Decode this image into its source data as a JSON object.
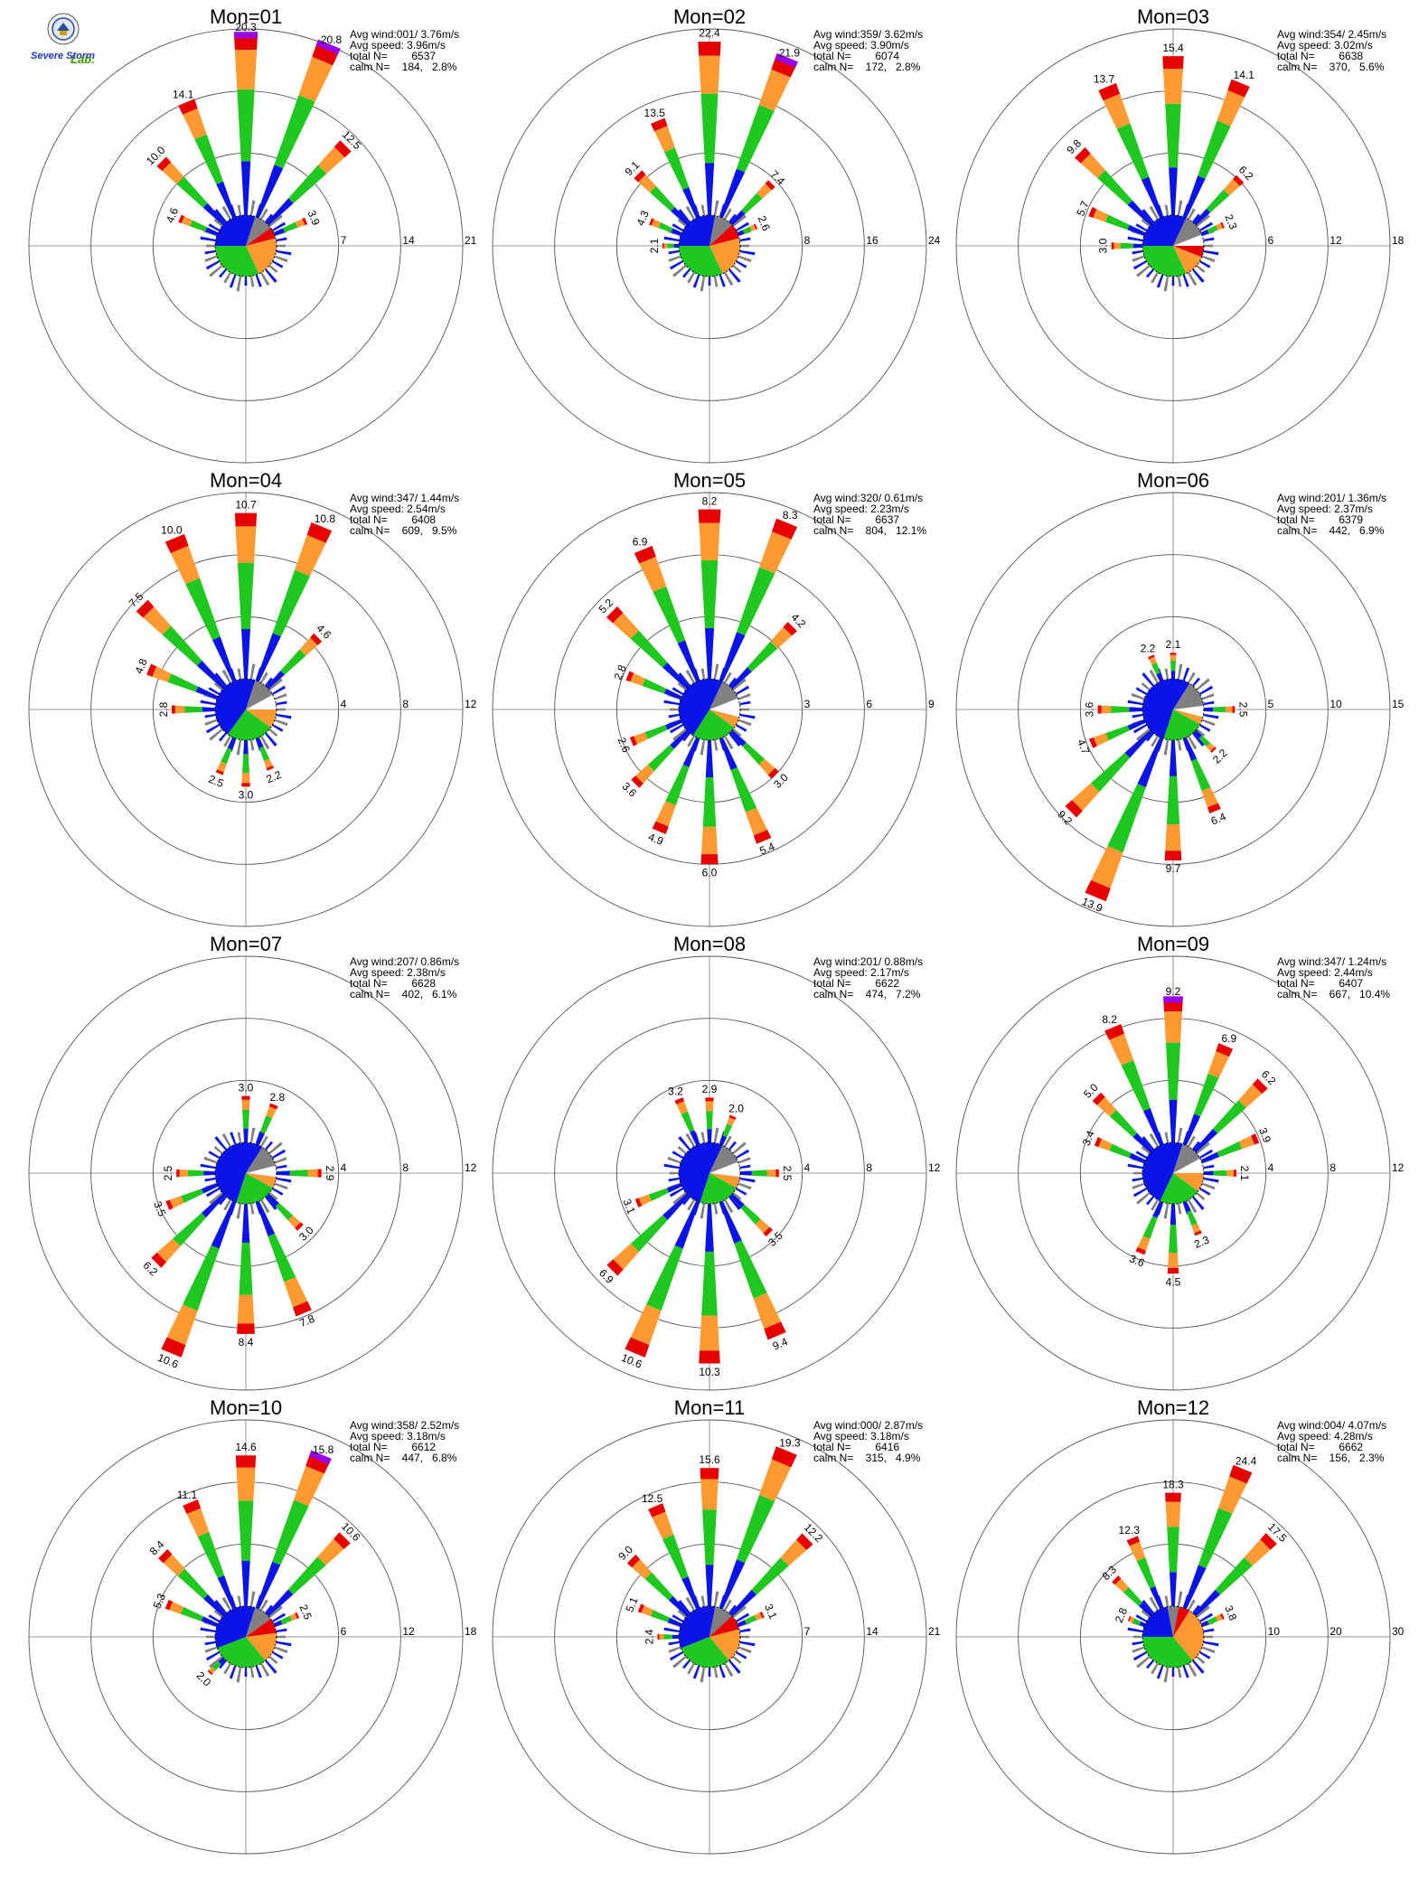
{
  "logo": {
    "lab_name_part1": "Severe Storm",
    "lab_name_part2": "Lab."
  },
  "stat_labels": {
    "avg_wind": "Avg wind:",
    "avg_speed": "Avg speed:",
    "total_n": "total N=",
    "calm_n": "calm N="
  },
  "colors": {
    "blue": "#0a14e6",
    "green": "#1ec81e",
    "orange": "#ff9a32",
    "red": "#e60000",
    "purple": "#9a00e6",
    "gray": "#808080",
    "black": "#000000"
  },
  "chart_data": [
    {
      "type": "wind-rose",
      "title": "Mon=01",
      "rings": [
        7,
        14,
        21
      ],
      "stats": {
        "avg_wind": "001/ 3.76m/s",
        "avg_speed": "3.96m/s",
        "total_n": "6537",
        "calm_n": "184,",
        "calm_pct": "2.8%"
      },
      "spokes": [
        {
          "dir": 0,
          "value": 20.3,
          "label": "20.3",
          "purple": true
        },
        {
          "dir": 22.5,
          "value": 20.8,
          "label": "20.8",
          "purple": true
        },
        {
          "dir": -22.5,
          "value": 14.1,
          "label": "14.1"
        },
        {
          "dir": 45,
          "value": 12.5,
          "label": "12.5"
        },
        {
          "dir": -45,
          "value": 10.0,
          "label": "10.0"
        },
        {
          "dir": -67.5,
          "value": 4.6,
          "label": "4.6"
        },
        {
          "dir": 67.5,
          "value": 3.9,
          "label": "3.9"
        }
      ],
      "pie": [
        {
          "color": "blue",
          "pct": 30
        },
        {
          "color": "gray",
          "pct": 10
        },
        {
          "color": "red",
          "pct": 6
        },
        {
          "color": "orange",
          "pct": 22
        },
        {
          "color": "green",
          "pct": 32
        }
      ]
    },
    {
      "type": "wind-rose",
      "title": "Mon=02",
      "rings": [
        8,
        16,
        24
      ],
      "stats": {
        "avg_wind": "359/ 3.62m/s",
        "avg_speed": "3.90m/s",
        "total_n": "6074",
        "calm_n": "172,",
        "calm_pct": "2.8%"
      },
      "spokes": [
        {
          "dir": 0,
          "value": 22.4,
          "label": "22.4"
        },
        {
          "dir": 22.5,
          "value": 21.9,
          "label": "21.9",
          "purple": true
        },
        {
          "dir": -22.5,
          "value": 13.5,
          "label": "13.5"
        },
        {
          "dir": 45,
          "value": 7.4,
          "label": "7.4"
        },
        {
          "dir": -45,
          "value": 9.1,
          "label": "9.1"
        },
        {
          "dir": -67.5,
          "value": 4.3,
          "label": "4.3"
        },
        {
          "dir": 67.5,
          "value": 2.6,
          "label": "2.6"
        },
        {
          "dir": -90,
          "value": 2.1,
          "label": "2.1"
        }
      ],
      "pie": [
        {
          "color": "blue",
          "pct": 28
        },
        {
          "color": "gray",
          "pct": 10
        },
        {
          "color": "red",
          "pct": 8
        },
        {
          "color": "orange",
          "pct": 22
        },
        {
          "color": "green",
          "pct": 32
        }
      ]
    },
    {
      "type": "wind-rose",
      "title": "Mon=03",
      "rings": [
        6,
        12,
        18
      ],
      "stats": {
        "avg_wind": "354/ 2.45m/s",
        "avg_speed": "3.02m/s",
        "total_n": "6638",
        "calm_n": "370,",
        "calm_pct": "5.6%"
      },
      "spokes": [
        {
          "dir": 0,
          "value": 15.4,
          "label": "15.4"
        },
        {
          "dir": 22.5,
          "value": 14.1,
          "label": "14.1"
        },
        {
          "dir": -22.5,
          "value": 13.7,
          "label": "13.7"
        },
        {
          "dir": -45,
          "value": 9.8,
          "label": "9.8"
        },
        {
          "dir": 45,
          "value": 6.2,
          "label": "6.2"
        },
        {
          "dir": -67.5,
          "value": 5.7,
          "label": "5.7"
        },
        {
          "dir": 67.5,
          "value": 2.3,
          "label": "2.3"
        },
        {
          "dir": -90,
          "value": 3.0,
          "label": "3.0"
        }
      ],
      "pie": [
        {
          "color": "blue",
          "pct": 32
        },
        {
          "color": "gray",
          "pct": 12
        },
        {
          "color": "white",
          "pct": 6
        },
        {
          "color": "red",
          "pct": 6
        },
        {
          "color": "orange",
          "pct": 12
        },
        {
          "color": "green",
          "pct": 32
        }
      ]
    },
    {
      "type": "wind-rose",
      "title": "Mon=04",
      "rings": [
        4,
        8,
        12
      ],
      "stats": {
        "avg_wind": "347/ 1.44m/s",
        "avg_speed": "2.54m/s",
        "total_n": "6408",
        "calm_n": "609,",
        "calm_pct": "9.5%"
      },
      "spokes": [
        {
          "dir": 0,
          "value": 10.7,
          "label": "10.7"
        },
        {
          "dir": 22.5,
          "value": 10.8,
          "label": "10.8"
        },
        {
          "dir": -22.5,
          "value": 10.0,
          "label": "10.0"
        },
        {
          "dir": -45,
          "value": 7.5,
          "label": "7.5"
        },
        {
          "dir": 45,
          "value": 4.6,
          "label": "4.6"
        },
        {
          "dir": -67.5,
          "value": 4.8,
          "label": "4.8"
        },
        {
          "dir": -90,
          "value": 2.8,
          "label": "2.8"
        },
        {
          "dir": 180,
          "value": 3.0,
          "label": "3.0"
        },
        {
          "dir": 157.5,
          "value": 2.2,
          "label": "2.2"
        },
        {
          "dir": 202.5,
          "value": 2.5,
          "label": "2.5"
        }
      ],
      "pie": [
        {
          "color": "blue",
          "pct": 30
        },
        {
          "color": "gray",
          "pct": 12
        },
        {
          "color": "white",
          "pct": 8
        },
        {
          "color": "orange",
          "pct": 10
        },
        {
          "color": "green",
          "pct": 25
        },
        {
          "color": "blue",
          "pct": 15
        }
      ]
    },
    {
      "type": "wind-rose",
      "title": "Mon=05",
      "rings": [
        3,
        6,
        9
      ],
      "stats": {
        "avg_wind": "320/ 0.61m/s",
        "avg_speed": "2.23m/s",
        "total_n": "6637",
        "calm_n": "804,",
        "calm_pct": "12.1%"
      },
      "spokes": [
        {
          "dir": 0,
          "value": 8.2,
          "label": "8.2"
        },
        {
          "dir": 22.5,
          "value": 8.3,
          "label": "8.3"
        },
        {
          "dir": -22.5,
          "value": 6.9,
          "label": "6.9"
        },
        {
          "dir": -45,
          "value": 5.2,
          "label": "5.2"
        },
        {
          "dir": 45,
          "value": 4.2,
          "label": "4.2"
        },
        {
          "dir": -67.5,
          "value": 2.8,
          "label": "2.8"
        },
        {
          "dir": 180,
          "value": 6.0,
          "label": "6.0"
        },
        {
          "dir": 157.5,
          "value": 5.4,
          "label": "5.4"
        },
        {
          "dir": 202.5,
          "value": 4.9,
          "label": "4.9"
        },
        {
          "dir": 225,
          "value": 3.6,
          "label": "3.6"
        },
        {
          "dir": 135,
          "value": 3.0,
          "label": "3.0"
        },
        {
          "dir": 247.5,
          "value": 2.6,
          "label": "2.6"
        }
      ],
      "pie": [
        {
          "color": "blue",
          "pct": 32
        },
        {
          "color": "gray",
          "pct": 12
        },
        {
          "color": "white",
          "pct": 10
        },
        {
          "color": "orange",
          "pct": 6
        },
        {
          "color": "green",
          "pct": 24
        },
        {
          "color": "blue",
          "pct": 16
        }
      ]
    },
    {
      "type": "wind-rose",
      "title": "Mon=06",
      "rings": [
        5,
        10,
        15
      ],
      "stats": {
        "avg_wind": "201/ 1.36m/s",
        "avg_speed": "2.37m/s",
        "total_n": "6379",
        "calm_n": "442,",
        "calm_pct": "6.9%"
      },
      "spokes": [
        {
          "dir": 202.5,
          "value": 13.9,
          "label": "13.9"
        },
        {
          "dir": 180,
          "value": 9.7,
          "label": "9.7"
        },
        {
          "dir": 225,
          "value": 9.2,
          "label": "9.2"
        },
        {
          "dir": 157.5,
          "value": 6.4,
          "label": "6.4"
        },
        {
          "dir": 247.5,
          "value": 4.7,
          "label": "4.7"
        },
        {
          "dir": 270,
          "value": 3.6,
          "label": "3.6"
        },
        {
          "dir": 135,
          "value": 2.2,
          "label": "2.2"
        },
        {
          "dir": 90,
          "value": 2.5,
          "label": "2.5"
        },
        {
          "dir": 0,
          "value": 2.1,
          "label": "2.1"
        },
        {
          "dir": -22.5,
          "value": 2.2,
          "label": "2.2"
        }
      ],
      "pie": [
        {
          "color": "blue",
          "pct": 34
        },
        {
          "color": "gray",
          "pct": 14
        },
        {
          "color": "white",
          "pct": 6
        },
        {
          "color": "orange",
          "pct": 4
        },
        {
          "color": "green",
          "pct": 22
        },
        {
          "color": "blue",
          "pct": 20
        }
      ]
    },
    {
      "type": "wind-rose",
      "title": "Mon=07",
      "rings": [
        4,
        8,
        12
      ],
      "stats": {
        "avg_wind": "207/ 0.86m/s",
        "avg_speed": "2.38m/s",
        "total_n": "6628",
        "calm_n": "402,",
        "calm_pct": "6.1%"
      },
      "spokes": [
        {
          "dir": 202.5,
          "value": 10.6,
          "label": "10.6"
        },
        {
          "dir": 180,
          "value": 8.4,
          "label": "8.4"
        },
        {
          "dir": 157.5,
          "value": 7.8,
          "label": "7.8"
        },
        {
          "dir": 225,
          "value": 6.2,
          "label": "6.2"
        },
        {
          "dir": 247.5,
          "value": 3.5,
          "label": "3.5"
        },
        {
          "dir": 135,
          "value": 3.0,
          "label": "3.0"
        },
        {
          "dir": 270,
          "value": 2.5,
          "label": "2.5"
        },
        {
          "dir": 0,
          "value": 3.0,
          "label": "3.0"
        },
        {
          "dir": 22.5,
          "value": 2.8,
          "label": "2.8"
        },
        {
          "dir": 90,
          "value": 2.9,
          "label": "2.9"
        }
      ],
      "pie": [
        {
          "color": "blue",
          "pct": 34
        },
        {
          "color": "gray",
          "pct": 12
        },
        {
          "color": "white",
          "pct": 6
        },
        {
          "color": "orange",
          "pct": 6
        },
        {
          "color": "green",
          "pct": 22
        },
        {
          "color": "blue",
          "pct": 20
        }
      ]
    },
    {
      "type": "wind-rose",
      "title": "Mon=08",
      "rings": [
        4,
        8,
        12
      ],
      "stats": {
        "avg_wind": "201/ 0.88m/s",
        "avg_speed": "2.17m/s",
        "total_n": "6622",
        "calm_n": "474,",
        "calm_pct": "7.2%"
      },
      "spokes": [
        {
          "dir": 202.5,
          "value": 10.6,
          "label": "10.6"
        },
        {
          "dir": 180,
          "value": 10.3,
          "label": "10.3"
        },
        {
          "dir": 157.5,
          "value": 9.4,
          "label": "9.4"
        },
        {
          "dir": 225,
          "value": 6.9,
          "label": "6.9"
        },
        {
          "dir": 135,
          "value": 3.5,
          "label": "3.5"
        },
        {
          "dir": 247.5,
          "value": 3.1,
          "label": "3.1"
        },
        {
          "dir": 0,
          "value": 2.9,
          "label": "2.9"
        },
        {
          "dir": 22.5,
          "value": 2.0,
          "label": "2.0"
        },
        {
          "dir": -22.5,
          "value": 3.2,
          "label": "3.2"
        },
        {
          "dir": 90,
          "value": 2.5,
          "label": "2.5"
        }
      ],
      "pie": [
        {
          "color": "blue",
          "pct": 32
        },
        {
          "color": "gray",
          "pct": 12
        },
        {
          "color": "white",
          "pct": 8
        },
        {
          "color": "orange",
          "pct": 6
        },
        {
          "color": "green",
          "pct": 22
        },
        {
          "color": "blue",
          "pct": 20
        }
      ]
    },
    {
      "type": "wind-rose",
      "title": "Mon=09",
      "rings": [
        4,
        8,
        12
      ],
      "stats": {
        "avg_wind": "347/ 1.24m/s",
        "avg_speed": "2.44m/s",
        "total_n": "6407",
        "calm_n": "667,",
        "calm_pct": "10.4%"
      },
      "spokes": [
        {
          "dir": 0,
          "value": 9.2,
          "label": "9.2",
          "purple": true
        },
        {
          "dir": -22.5,
          "value": 8.2,
          "label": "8.2"
        },
        {
          "dir": 22.5,
          "value": 6.9,
          "label": "6.9"
        },
        {
          "dir": 45,
          "value": 6.2,
          "label": "6.2"
        },
        {
          "dir": -45,
          "value": 5.0,
          "label": "5.0"
        },
        {
          "dir": 67.5,
          "value": 3.9,
          "label": "3.9"
        },
        {
          "dir": -67.5,
          "value": 3.4,
          "label": "3.4"
        },
        {
          "dir": 180,
          "value": 4.5,
          "label": "4.5"
        },
        {
          "dir": 202.5,
          "value": 3.6,
          "label": "3.6"
        },
        {
          "dir": 157.5,
          "value": 2.3,
          "label": "2.3"
        },
        {
          "dir": 90,
          "value": 2.1,
          "label": "2.1"
        }
      ],
      "pie": [
        {
          "color": "blue",
          "pct": 30
        },
        {
          "color": "gray",
          "pct": 12
        },
        {
          "color": "white",
          "pct": 8
        },
        {
          "color": "orange",
          "pct": 10
        },
        {
          "color": "green",
          "pct": 22
        },
        {
          "color": "blue",
          "pct": 18
        }
      ]
    },
    {
      "type": "wind-rose",
      "title": "Mon=10",
      "rings": [
        6,
        12,
        18
      ],
      "stats": {
        "avg_wind": "358/ 2.52m/s",
        "avg_speed": "3.18m/s",
        "total_n": "6612",
        "calm_n": "447,",
        "calm_pct": "6.8%"
      },
      "spokes": [
        {
          "dir": 0,
          "value": 14.6,
          "label": "14.6"
        },
        {
          "dir": 22.5,
          "value": 15.8,
          "label": "15.8",
          "purple": true
        },
        {
          "dir": -22.5,
          "value": 11.1,
          "label": "11.1"
        },
        {
          "dir": 45,
          "value": 10.6,
          "label": "10.6"
        },
        {
          "dir": -45,
          "value": 8.4,
          "label": "8.4"
        },
        {
          "dir": -67.5,
          "value": 5.3,
          "label": "5.3"
        },
        {
          "dir": 67.5,
          "value": 2.5,
          "label": "2.5"
        },
        {
          "dir": 225,
          "value": 2.0,
          "label": "2.0"
        }
      ],
      "pie": [
        {
          "color": "blue",
          "pct": 30
        },
        {
          "color": "gray",
          "pct": 10
        },
        {
          "color": "red",
          "pct": 8
        },
        {
          "color": "orange",
          "pct": 16
        },
        {
          "color": "green",
          "pct": 30
        },
        {
          "color": "blue",
          "pct": 6
        }
      ]
    },
    {
      "type": "wind-rose",
      "title": "Mon=11",
      "rings": [
        7,
        14,
        21
      ],
      "stats": {
        "avg_wind": "000/ 2.87m/s",
        "avg_speed": "3.18m/s",
        "total_n": "6416",
        "calm_n": "315,",
        "calm_pct": "4.9%"
      },
      "spokes": [
        {
          "dir": 22.5,
          "value": 19.3,
          "label": "19.3"
        },
        {
          "dir": 0,
          "value": 15.6,
          "label": "15.6"
        },
        {
          "dir": -22.5,
          "value": 12.5,
          "label": "12.5"
        },
        {
          "dir": 45,
          "value": 12.2,
          "label": "12.2"
        },
        {
          "dir": -45,
          "value": 9.0,
          "label": "9.0"
        },
        {
          "dir": -67.5,
          "value": 5.1,
          "label": "5.1"
        },
        {
          "dir": 67.5,
          "value": 3.1,
          "label": "3.1"
        },
        {
          "dir": -90,
          "value": 2.4,
          "label": "2.4"
        }
      ],
      "pie": [
        {
          "color": "blue",
          "pct": 28
        },
        {
          "color": "gray",
          "pct": 10
        },
        {
          "color": "red",
          "pct": 8
        },
        {
          "color": "orange",
          "pct": 18
        },
        {
          "color": "green",
          "pct": 30
        },
        {
          "color": "blue",
          "pct": 6
        }
      ]
    },
    {
      "type": "wind-rose",
      "title": "Mon=12",
      "rings": [
        10,
        20,
        30
      ],
      "stats": {
        "avg_wind": "004/ 4.07m/s",
        "avg_speed": "4.28m/s",
        "total_n": "6662",
        "calm_n": "156,",
        "calm_pct": "2.3%"
      },
      "spokes": [
        {
          "dir": 22.5,
          "value": 24.4,
          "label": "24.4"
        },
        {
          "dir": 0,
          "value": 18.3,
          "label": "18.3"
        },
        {
          "dir": 45,
          "value": 17.5,
          "label": "17.5"
        },
        {
          "dir": -22.5,
          "value": 12.3,
          "label": "12.3"
        },
        {
          "dir": -45,
          "value": 8.3,
          "label": "8.3"
        },
        {
          "dir": 67.5,
          "value": 3.8,
          "label": "3.8"
        },
        {
          "dir": -67.5,
          "value": 2.8,
          "label": "2.8"
        }
      ],
      "pie": [
        {
          "color": "blue",
          "pct": 22
        },
        {
          "color": "gray",
          "pct": 6
        },
        {
          "color": "red",
          "pct": 6
        },
        {
          "color": "orange",
          "pct": 30
        },
        {
          "color": "green",
          "pct": 36
        }
      ]
    }
  ]
}
